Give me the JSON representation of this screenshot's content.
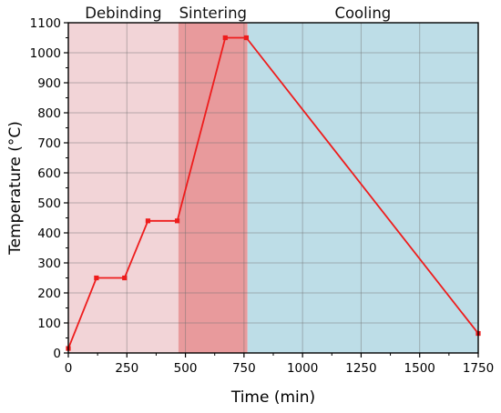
{
  "chart_data": {
    "type": "line",
    "xlabel": "Time (min)",
    "ylabel": "Temperature (°C)",
    "xlim": [
      0,
      1750
    ],
    "ylim": [
      0,
      1100
    ],
    "x_ticks": [
      0,
      250,
      500,
      750,
      1000,
      1250,
      1500,
      1750
    ],
    "y_ticks": [
      0,
      100,
      200,
      300,
      400,
      500,
      600,
      700,
      800,
      900,
      1000,
      1100
    ],
    "grid": true,
    "series": [
      {
        "color": "#ee1c1c",
        "x": [
          0,
          120,
          240,
          340,
          465,
          670,
          760,
          1750
        ],
        "y": [
          15,
          250,
          250,
          440,
          440,
          1050,
          1050,
          65
        ]
      }
    ],
    "phases": [
      {
        "label": "Debinding",
        "x_start": 0,
        "x_end": 470,
        "color": "#f2d4d7"
      },
      {
        "label": "Sintering",
        "x_start": 470,
        "x_end": 765,
        "color": "#e89a9c"
      },
      {
        "label": "Cooling",
        "x_start": 765,
        "x_end": 1750,
        "color": "#bddde7"
      }
    ]
  }
}
